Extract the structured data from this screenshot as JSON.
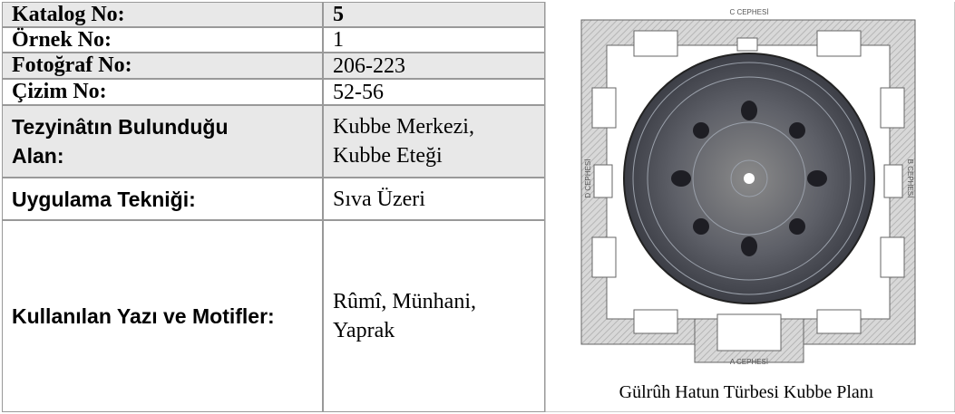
{
  "table": {
    "rows": [
      [
        "Katalog No:",
        "5"
      ],
      [
        "Örnek No:",
        "1"
      ],
      [
        "Fotoğraf No:",
        "206-223"
      ],
      [
        "Çizim No:",
        "52-56"
      ],
      [
        "Tezyinâtın Bulunduğu Alan:",
        "Kubbe Merkezi, Kubbe Eteği"
      ],
      [
        "Uygulama Tekniği:",
        "Sıva Üzeri"
      ],
      [
        "Kullanılan Yazı ve Motifler:",
        "Rûmî, Münhani, Yaprak"
      ]
    ]
  },
  "figure": {
    "labels": {
      "top": "C CEPHESİ",
      "left": "D CEPHESİ",
      "right": "B CEPHESİ",
      "bottom": "A CEPHESİ"
    },
    "caption": "Gülrûh Hatun Türbesi Kubbe Planı"
  }
}
